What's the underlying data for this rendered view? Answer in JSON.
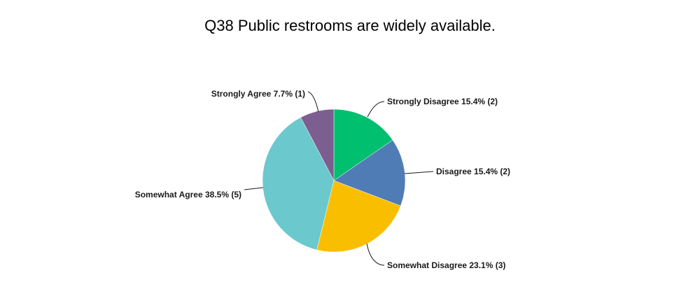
{
  "chart_data": {
    "type": "pie",
    "title": "Q38 Public restrooms are widely available.",
    "start_angle_deg": 0,
    "direction": "clockwise",
    "slices": [
      {
        "label": "Strongly Disagree",
        "percent": 15.4,
        "count": 2,
        "display": "Strongly Disagree 15.4% (2)",
        "color": "#00bf6f"
      },
      {
        "label": "Disagree",
        "percent": 15.4,
        "count": 2,
        "display": "Disagree 15.4% (2)",
        "color": "#507cb6"
      },
      {
        "label": "Somewhat Disagree",
        "percent": 23.1,
        "count": 3,
        "display": "Somewhat Disagree 23.1% (3)",
        "color": "#f9be00"
      },
      {
        "label": "Somewhat Agree",
        "percent": 38.5,
        "count": 5,
        "display": "Somewhat Agree 38.5% (5)",
        "color": "#6bc8cd"
      },
      {
        "label": "Strongly Agree",
        "percent": 7.7,
        "count": 1,
        "display": "Strongly Agree 7.7% (1)",
        "color": "#7d5e90"
      }
    ]
  }
}
